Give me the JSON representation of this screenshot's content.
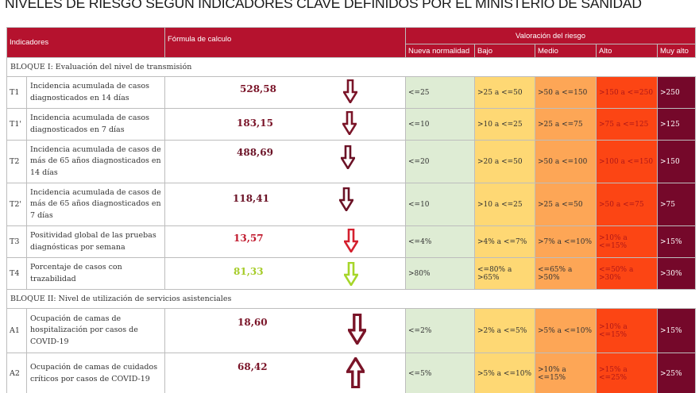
{
  "title": "NIVELES DE RIESGO SEGÚN INDICADORES CLAVE DEFINIDOS POR EL MINISTERIO DE SANIDAD",
  "header": {
    "indicadores": "Indicadores",
    "formula": "Fórmula de calculo",
    "valoracion": "Valoración del riesgo",
    "levels": [
      "Nueva normalidad",
      "Bajo",
      "Medio",
      "Alto",
      "Muy alto"
    ]
  },
  "colors": {
    "header_bg": "#b5122e",
    "nueva_normalidad": "#deecd4",
    "bajo": "#fed874",
    "medio": "#fda656",
    "alto": "#fc4514",
    "muy_alto": "#75082a",
    "arrow_dark": "#7a1428",
    "arrow_red": "#d4202e",
    "arrow_green": "#a6d62a"
  },
  "blocks": [
    {
      "title": "BLOQUE I: Evaluación del nivel de transmisión",
      "rows": [
        {
          "code": "T1",
          "desc": "Incidencia acumulada de casos diagnosticados en 14 días",
          "value": "528,58",
          "trend": "down",
          "value_color": "#7a1428",
          "arrow_color": "#7a1428",
          "levels": [
            "<=25",
            ">25 a <=50",
            ">50 a <=150",
            ">150 a <=250",
            ">250"
          ]
        },
        {
          "code": "T1'",
          "desc": "Incidencia acumulada de casos diagnosticados en 7 días",
          "value": "183,15",
          "trend": "down",
          "value_color": "#7a1428",
          "arrow_color": "#7a1428",
          "levels": [
            "<=10",
            ">10 a <=25",
            ">25 a <=75",
            ">75 a <=125",
            ">125"
          ]
        },
        {
          "code": "T2",
          "desc": "Incidencia acumulada de casos de más de 65 años diagnosticados en 14 días",
          "value": "488,69",
          "trend": "down",
          "value_color": "#6b1226",
          "arrow_color": "#6b1226",
          "levels": [
            "<=20",
            ">20 a <=50",
            ">50 a <=100",
            ">100 a <=150",
            ">150"
          ]
        },
        {
          "code": "T2'",
          "desc": "Incidencia acumulada de casos de más de 65 años diagnosticados en 7 días",
          "value": "118,41",
          "trend": "down",
          "value_color": "#6b1226",
          "arrow_color": "#6b1226",
          "levels": [
            "<=10",
            ">10 a <=25",
            ">25 a <=50",
            ">50 a <=75",
            ">75"
          ]
        },
        {
          "code": "T3",
          "desc": "Positividad global de las pruebas diagnósticas por semana",
          "value": "13,57",
          "trend": "down",
          "value_color": "#c0182c",
          "arrow_color": "#d4202e",
          "levels": [
            "<=4%",
            ">4% a <=7%",
            ">7% a <=10%",
            ">10% a <=15%",
            ">15%"
          ]
        },
        {
          "code": "T4",
          "desc": "Porcentaje de casos con trazabilidad",
          "value": "81,33",
          "trend": "down",
          "value_color": "#a6cc2a",
          "arrow_color": "#a6d62a",
          "levels": [
            ">80%",
            "<=80% a >65%",
            "<=65% a >50%",
            "<=50% a >30%",
            ">30%"
          ]
        }
      ]
    },
    {
      "title": "BLOQUE II: Nivel de utilización de servicios asistenciales",
      "rows": [
        {
          "code": "A1",
          "desc": "Ocupación de camas de hospitalización por casos de COVID-19",
          "value": "18,60",
          "trend": "down",
          "value_color": "#7a1428",
          "arrow_color": "#7a1428",
          "levels": [
            "<=2%",
            ">2% a <=5%",
            ">5% a <=10%",
            ">10% a <=15%",
            ">15%"
          ]
        },
        {
          "code": "A2",
          "desc": "Ocupación de camas de cuidados críticos por casos de COVID-19",
          "value": "68,42",
          "trend": "up",
          "value_color": "#7a1428",
          "arrow_color": "#7a1428",
          "levels": [
            "<=5%",
            ">5% a <=10%",
            ">10% a <=15%",
            ">15% a <=25%",
            ">25%"
          ]
        }
      ]
    }
  ]
}
